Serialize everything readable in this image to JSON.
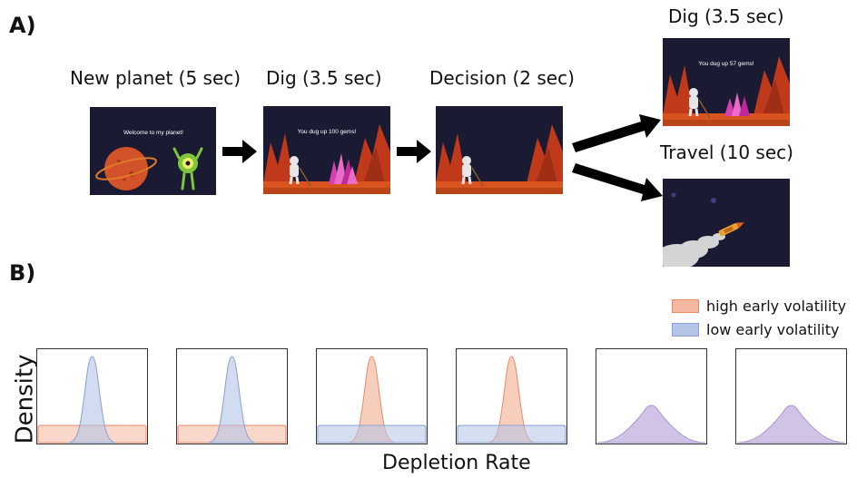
{
  "panel_a": {
    "label": "A)",
    "steps": [
      {
        "label": "New planet (5 sec)",
        "screen_text": "Welcome to my planet!"
      },
      {
        "label": "Dig (3.5 sec)",
        "screen_text": "You dug up 100 gems!"
      },
      {
        "label": "Decision (2 sec)",
        "screen_text": ""
      },
      {
        "label": "Dig (3.5 sec)",
        "screen_text": "You dug up 57 gems!"
      },
      {
        "label": "Travel (10 sec)",
        "screen_text": ""
      }
    ]
  },
  "panel_b": {
    "label": "B)",
    "legend": [
      {
        "label": "high early volatility",
        "color": "#f4b8a0"
      },
      {
        "label": "low early volatility",
        "color": "#b4c4e6"
      }
    ],
    "xlabel": "Depletion Rate",
    "ylabel": "Density"
  },
  "colors": {
    "screen_bg": "#1a1b33",
    "ground": "#d9531f",
    "rock": "#c0391b",
    "gems": "#d83fb0",
    "alien": "#7fc63a",
    "planet": "#d2522a",
    "high_volatility": "#f4b8a0",
    "low_volatility": "#b4c4e6",
    "overlap": "#c8b8e0"
  }
}
